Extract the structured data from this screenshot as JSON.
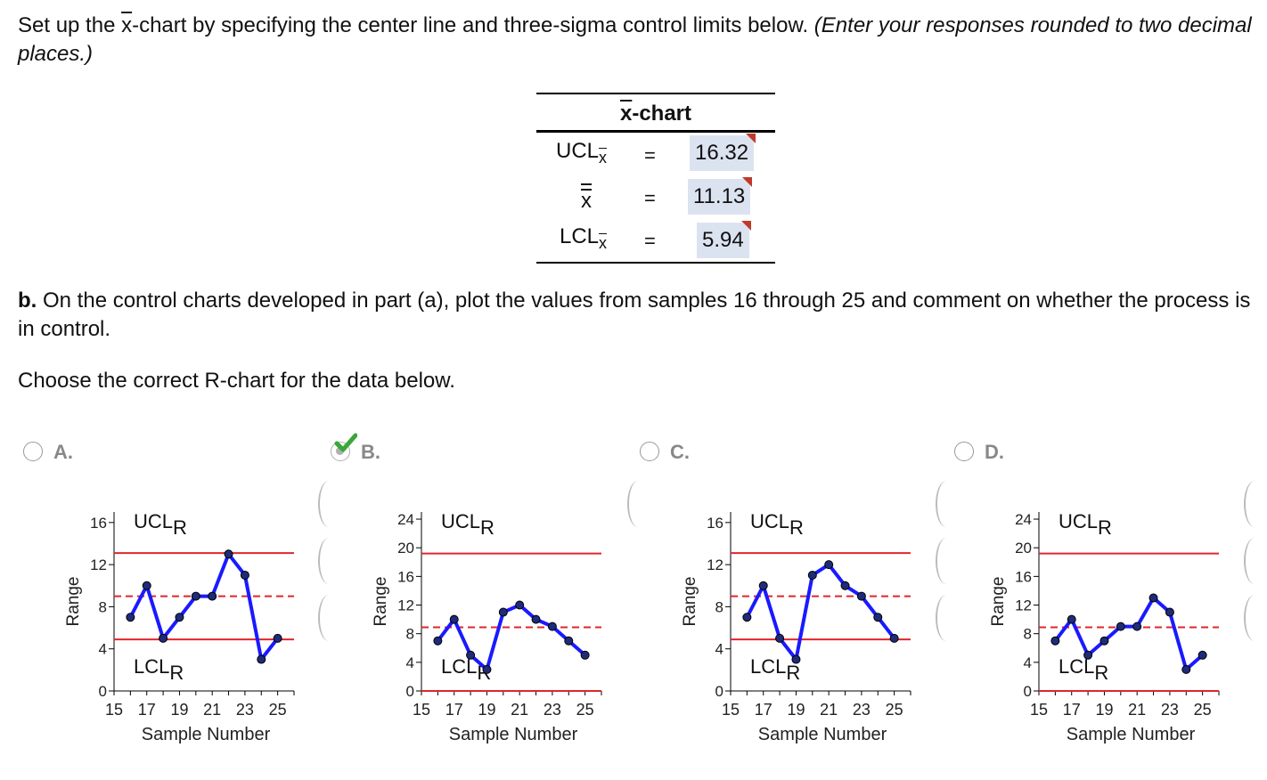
{
  "intro": {
    "part1": "Set up the ",
    "xbar": "x",
    "part2": "-chart by specifying the center line and three-sigma control limits below. ",
    "italic": "(Enter your responses rounded to two decimal places.)"
  },
  "xchart_table": {
    "title_xbar": "x",
    "title_rest": "-chart",
    "rows": [
      {
        "label": "UCL",
        "sub": "x",
        "eq": "=",
        "value": "16.32"
      },
      {
        "label": "x",
        "sub": "",
        "eq": "=",
        "value": "11.13"
      },
      {
        "label": "LCL",
        "sub": "x",
        "eq": "=",
        "value": "5.94"
      }
    ]
  },
  "partb": {
    "bold": "b.",
    "text": " On the control charts developed in part (a), plot the values from samples 16 through 25 and comment on whether the process is in control."
  },
  "choose": "Choose the correct R-chart for the data below.",
  "options": [
    {
      "letter": "A.",
      "selected": false
    },
    {
      "letter": "B.",
      "selected": true
    },
    {
      "letter": "C.",
      "selected": false
    },
    {
      "letter": "D.",
      "selected": false
    }
  ],
  "colors": {
    "data_line": "#1a1aff",
    "marker": "#1f2b7a",
    "control_limit": "#e0262b",
    "center_line": "#e0262b",
    "input_bg": "#dce3f0"
  },
  "chart_data": [
    {
      "type": "line",
      "option": "A.",
      "x": [
        16,
        17,
        18,
        19,
        20,
        21,
        22,
        23,
        24,
        25
      ],
      "series": [
        {
          "values": [
            7,
            10,
            5,
            7,
            9,
            9,
            13,
            11,
            3,
            5
          ]
        }
      ],
      "ucl": 13.1,
      "center": 9.0,
      "lcl": 4.9,
      "ucl_label": "UCL",
      "lcl_label": "LCL",
      "sub": "R",
      "ylabel": "Range",
      "xlabel": "Sample Number",
      "ylim": [
        0,
        17
      ],
      "yticks": [
        0,
        4,
        8,
        12,
        16
      ],
      "xlim": [
        15,
        26
      ],
      "xticks": [
        15,
        17,
        19,
        21,
        23,
        25
      ],
      "grid": false
    },
    {
      "type": "line",
      "option": "B.",
      "x": [
        16,
        17,
        18,
        19,
        20,
        21,
        22,
        23,
        24,
        25
      ],
      "series": [
        {
          "values": [
            7,
            10,
            5,
            3,
            11,
            12,
            10,
            9,
            7,
            5
          ]
        }
      ],
      "ucl": 19.2,
      "center": 8.9,
      "lcl": 0,
      "ucl_label": "UCL",
      "lcl_label": "LCL",
      "sub": "R",
      "ylabel": "Range",
      "xlabel": "Sample Number",
      "ylim": [
        0,
        25
      ],
      "yticks": [
        0,
        4,
        8,
        12,
        16,
        20,
        24
      ],
      "xlim": [
        15,
        26
      ],
      "xticks": [
        15,
        17,
        19,
        21,
        23,
        25
      ],
      "grid": false
    },
    {
      "type": "line",
      "option": "C.",
      "x": [
        16,
        17,
        18,
        19,
        20,
        21,
        22,
        23,
        24,
        25
      ],
      "series": [
        {
          "values": [
            7,
            10,
            5,
            3,
            11,
            12,
            10,
            9,
            7,
            5
          ]
        }
      ],
      "ucl": 13.1,
      "center": 9.0,
      "lcl": 4.9,
      "ucl_label": "UCL",
      "lcl_label": "LCL",
      "sub": "R",
      "ylabel": "Range",
      "xlabel": "Sample Number",
      "ylim": [
        0,
        17
      ],
      "yticks": [
        0,
        4,
        8,
        12,
        16
      ],
      "xlim": [
        15,
        26
      ],
      "xticks": [
        15,
        17,
        19,
        21,
        23,
        25
      ],
      "grid": false
    },
    {
      "type": "line",
      "option": "D.",
      "x": [
        16,
        17,
        18,
        19,
        20,
        21,
        22,
        23,
        24,
        25
      ],
      "series": [
        {
          "values": [
            7,
            10,
            5,
            7,
            9,
            9,
            13,
            11,
            3,
            5
          ]
        }
      ],
      "ucl": 19.2,
      "center": 8.9,
      "lcl": 0,
      "ucl_label": "UCL",
      "lcl_label": "LCL",
      "sub": "R",
      "ylabel": "Range",
      "xlabel": "Sample Number",
      "ylim": [
        0,
        25
      ],
      "yticks": [
        0,
        4,
        8,
        12,
        16,
        20,
        24
      ],
      "xlim": [
        15,
        26
      ],
      "xticks": [
        15,
        17,
        19,
        21,
        23,
        25
      ],
      "grid": false
    }
  ]
}
